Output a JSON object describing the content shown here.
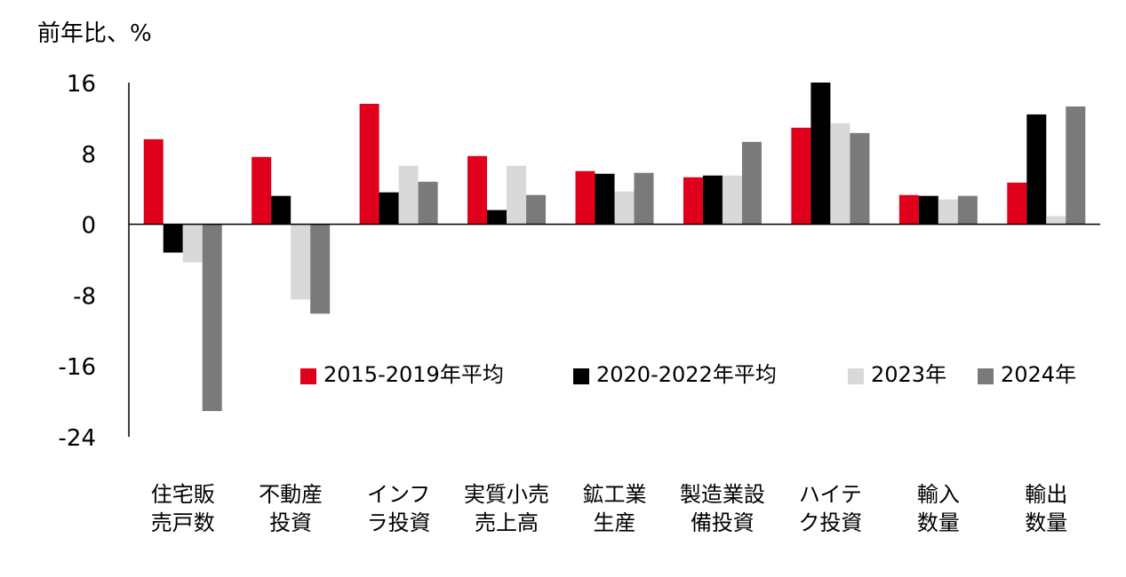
{
  "chart_data": {
    "type": "bar",
    "ylabel": "前年比、%",
    "ylim": [
      -24,
      16
    ],
    "yticks": [
      16,
      8,
      0,
      -8,
      -16,
      -24
    ],
    "grid": false,
    "legend_position": "center-right inside plot",
    "categories": [
      [
        "住宅販",
        "売戸数"
      ],
      [
        "不動産",
        "投資"
      ],
      [
        "インフ",
        "ラ投資"
      ],
      [
        "実質小売",
        "売上高"
      ],
      [
        "鉱工業",
        "生産"
      ],
      [
        "製造業設",
        "備投資"
      ],
      [
        "ハイテ",
        "ク投資"
      ],
      [
        "輸入",
        "数量"
      ],
      [
        "輸出",
        "数量"
      ]
    ],
    "series": [
      {
        "name": "2015-2019年平均",
        "color": "#e0001b",
        "values": [
          9.6,
          7.6,
          13.6,
          7.7,
          6.0,
          5.3,
          10.9,
          3.3,
          4.7
        ]
      },
      {
        "name": "2020-2022年平均",
        "color": "#000000",
        "values": [
          -3.2,
          3.2,
          3.6,
          1.6,
          5.7,
          5.5,
          16.0,
          3.2,
          12.4
        ]
      },
      {
        "name": "2023年",
        "color": "#d9d9d9",
        "values": [
          -4.3,
          -8.5,
          6.6,
          6.6,
          3.7,
          5.5,
          11.4,
          2.8,
          0.9
        ]
      },
      {
        "name": "2024年",
        "color": "#7a7a7a",
        "values": [
          -21.1,
          -10.1,
          4.8,
          3.3,
          5.8,
          9.3,
          10.3,
          3.2,
          13.3
        ]
      }
    ]
  }
}
